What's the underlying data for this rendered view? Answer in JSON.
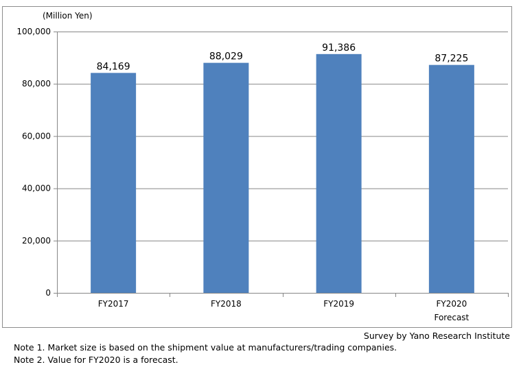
{
  "chart_data": {
    "type": "bar",
    "unit_label": "(Million Yen)",
    "categories": [
      "FY2017",
      "FY2018",
      "FY2019",
      "FY2020"
    ],
    "category_sublabels": [
      "",
      "",
      "",
      "Forecast"
    ],
    "values": [
      84169,
      88029,
      91386,
      87225
    ],
    "data_labels": [
      "84,169",
      "88,029",
      "91,386",
      "87,225"
    ],
    "ylim": [
      0,
      100000
    ],
    "yticks": [
      0,
      20000,
      40000,
      60000,
      80000,
      100000
    ],
    "ytick_labels": [
      "0",
      "20,000",
      "40,000",
      "60,000",
      "80,000",
      "100,000"
    ],
    "grid": true,
    "bar_color": "#4f81bd",
    "grid_color": "#868686"
  },
  "source": "Survey by Yano Research Institute",
  "notes": [
    "Note 1.  Market size is based on the shipment value at manufacturers/trading companies.",
    "Note 2.  Value for FY2020 is a forecast."
  ]
}
